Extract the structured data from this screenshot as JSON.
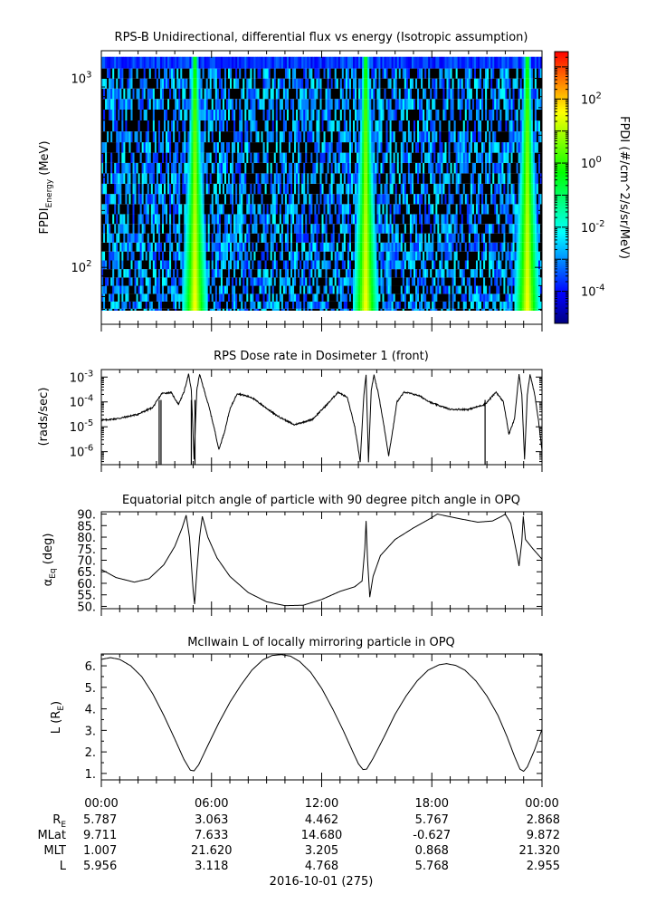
{
  "chart_data": [
    {
      "type": "heatmap",
      "title": "RPS-B  Unidirectional, differential flux vs energy (Isotropic assumption)",
      "ylabel_main": "FPDI",
      "ylabel_sub": "Energy",
      "ylabel_unit": " (MeV)",
      "yscale": "log",
      "ylim": [
        50,
        1400
      ],
      "yticks": [
        {
          "value": 100,
          "base": "10",
          "exp": "2"
        },
        {
          "value": 1000,
          "base": "10",
          "exp": "3"
        }
      ],
      "colorbar_label": "FPDI (#/cm^2/s/sr/MeV)",
      "colorbar_scale": "log",
      "colorbar_range": [
        1e-05,
        3000
      ],
      "colorbar_ticks": [
        {
          "value": 0.0001,
          "base": "10",
          "exp": "-4"
        },
        {
          "value": 0.01,
          "base": "10",
          "exp": "-2"
        },
        {
          "value": 1,
          "base": "10",
          "exp": "0"
        },
        {
          "value": 100,
          "base": "10",
          "exp": "2"
        }
      ],
      "colormap": [
        "#000080",
        "#0000ff",
        "#0080ff",
        "#00ffff",
        "#00ff80",
        "#00ff00",
        "#80ff00",
        "#ffff00",
        "#ff8000",
        "#ff0000"
      ],
      "energy_channels_mev": [
        58,
        63,
        69,
        76,
        84,
        93,
        103,
        115,
        128,
        143,
        160,
        180,
        203,
        230,
        260,
        295,
        335,
        380,
        430,
        490,
        560,
        640,
        730,
        830,
        940,
        1060,
        1200
      ],
      "flux_peaks_hours": [
        5.1,
        14.4,
        23.2
      ]
    },
    {
      "type": "line",
      "title": "RPS  Dose rate in Dosimeter 1 (front)",
      "ylabel": "(rads/sec)",
      "yscale": "log",
      "ylim": [
        3e-07,
        0.002
      ],
      "yticks": [
        {
          "value": 1e-06,
          "base": "10",
          "exp": "-6"
        },
        {
          "value": 1e-05,
          "base": "10",
          "exp": "-5"
        },
        {
          "value": 0.0001,
          "base": "10",
          "exp": "-4"
        },
        {
          "value": 0.001,
          "base": "10",
          "exp": "-3"
        }
      ],
      "series_points_hours_value": [
        [
          0,
          1.8e-05
        ],
        [
          1.0,
          2.2e-05
        ],
        [
          2.0,
          3.2e-05
        ],
        [
          2.8,
          6e-05
        ],
        [
          3.3,
          0.00022
        ],
        [
          3.8,
          0.00024
        ],
        [
          4.2,
          8e-05
        ],
        [
          4.5,
          0.00025
        ],
        [
          4.75,
          0.0013
        ],
        [
          4.9,
          0.0003
        ],
        [
          5.05,
          5e-07
        ],
        [
          5.2,
          0.0003
        ],
        [
          5.35,
          0.0013
        ],
        [
          5.6,
          0.0003
        ],
        [
          5.9,
          5e-05
        ],
        [
          6.2,
          6e-06
        ],
        [
          6.4,
          1.2e-06
        ],
        [
          6.7,
          6e-06
        ],
        [
          7.0,
          5e-05
        ],
        [
          7.4,
          0.00022
        ],
        [
          8.2,
          0.00015
        ],
        [
          9.5,
          3e-05
        ],
        [
          10.5,
          1.2e-05
        ],
        [
          11.5,
          2e-05
        ],
        [
          12.3,
          8e-05
        ],
        [
          12.9,
          0.00025
        ],
        [
          13.4,
          0.00015
        ],
        [
          13.8,
          1e-05
        ],
        [
          14.1,
          4e-07
        ],
        [
          14.3,
          0.0002
        ],
        [
          14.42,
          0.0012
        ],
        [
          14.55,
          4e-07
        ],
        [
          14.7,
          0.0003
        ],
        [
          14.85,
          0.0012
        ],
        [
          15.1,
          0.0002
        ],
        [
          15.4,
          1e-05
        ],
        [
          15.65,
          7e-07
        ],
        [
          15.9,
          1e-05
        ],
        [
          16.1,
          0.0001
        ],
        [
          16.5,
          0.00025
        ],
        [
          17.3,
          0.00018
        ],
        [
          18.0,
          9e-05
        ],
        [
          19.0,
          5e-05
        ],
        [
          20.0,
          5e-05
        ],
        [
          20.9,
          8e-05
        ],
        [
          21.5,
          0.00025
        ],
        [
          21.9,
          0.0001
        ],
        [
          22.2,
          5e-06
        ],
        [
          22.5,
          2e-05
        ],
        [
          22.75,
          0.0013
        ],
        [
          22.9,
          0.0002
        ],
        [
          23.05,
          5e-07
        ],
        [
          23.2,
          0.0002
        ],
        [
          23.35,
          0.0013
        ],
        [
          23.6,
          0.0002
        ],
        [
          23.8,
          2e-05
        ],
        [
          24.0,
          1.1e-06
        ]
      ],
      "dropouts_hours": [
        3.15,
        3.25,
        4.9,
        5.1,
        20.9
      ]
    },
    {
      "type": "line",
      "title": "Equatorial pitch angle of particle with 90 degree pitch angle in OPQ",
      "ylabel_main": "α",
      "ylabel_sub": "Eq",
      "ylabel_unit": " (deg)",
      "ylim": [
        49,
        91
      ],
      "yticks": [
        {
          "value": 50,
          "label": "50."
        },
        {
          "value": 55,
          "label": "55."
        },
        {
          "value": 60,
          "label": "60."
        },
        {
          "value": 65,
          "label": "65."
        },
        {
          "value": 70,
          "label": "70."
        },
        {
          "value": 75,
          "label": "75."
        },
        {
          "value": 80,
          "label": "80."
        },
        {
          "value": 85,
          "label": "85."
        },
        {
          "value": 90,
          "label": "90."
        }
      ],
      "series_points_hours_value": [
        [
          0,
          66
        ],
        [
          0.8,
          62.5
        ],
        [
          1.8,
          60.5
        ],
        [
          2.6,
          62
        ],
        [
          3.4,
          68
        ],
        [
          4.0,
          76
        ],
        [
          4.4,
          84
        ],
        [
          4.62,
          89.5
        ],
        [
          4.8,
          80
        ],
        [
          5.0,
          57
        ],
        [
          5.08,
          51
        ],
        [
          5.2,
          65
        ],
        [
          5.35,
          80
        ],
        [
          5.5,
          89
        ],
        [
          5.8,
          80
        ],
        [
          6.3,
          71
        ],
        [
          7.0,
          63
        ],
        [
          8.0,
          56
        ],
        [
          9.0,
          52
        ],
        [
          10.0,
          50.3
        ],
        [
          11.0,
          50.5
        ],
        [
          12.0,
          53
        ],
        [
          13.0,
          56.5
        ],
        [
          13.8,
          58.5
        ],
        [
          14.2,
          61
        ],
        [
          14.35,
          75
        ],
        [
          14.42,
          87
        ],
        [
          14.5,
          70
        ],
        [
          14.62,
          54
        ],
        [
          14.8,
          63
        ],
        [
          15.2,
          72
        ],
        [
          16.0,
          79
        ],
        [
          17.0,
          84
        ],
        [
          17.9,
          88
        ],
        [
          18.3,
          90
        ],
        [
          19.5,
          88
        ],
        [
          20.5,
          86.5
        ],
        [
          21.3,
          87
        ],
        [
          21.8,
          89
        ],
        [
          22.0,
          90
        ],
        [
          22.3,
          86
        ],
        [
          22.65,
          72
        ],
        [
          22.75,
          67.5
        ],
        [
          22.9,
          78
        ],
        [
          22.98,
          89
        ],
        [
          23.1,
          79
        ],
        [
          23.5,
          75
        ],
        [
          24.0,
          70.5
        ]
      ]
    },
    {
      "type": "line",
      "title": "McIlwain L of locally mirroring particle in OPQ",
      "ylabel_main": "L (R",
      "ylabel_sub": "E",
      "ylabel_unit": ")",
      "ylim": [
        0.7,
        6.55
      ],
      "yticks": [
        {
          "value": 1,
          "label": "1."
        },
        {
          "value": 2,
          "label": "2."
        },
        {
          "value": 3,
          "label": "3."
        },
        {
          "value": 4,
          "label": "4."
        },
        {
          "value": 5,
          "label": "5."
        },
        {
          "value": 6,
          "label": "6."
        }
      ],
      "series_points_hours_value": [
        [
          0,
          6.3
        ],
        [
          0.5,
          6.38
        ],
        [
          1.0,
          6.3
        ],
        [
          1.6,
          6.0
        ],
        [
          2.2,
          5.5
        ],
        [
          2.8,
          4.7
        ],
        [
          3.4,
          3.7
        ],
        [
          4.0,
          2.6
        ],
        [
          4.5,
          1.65
        ],
        [
          4.85,
          1.15
        ],
        [
          5.05,
          1.12
        ],
        [
          5.3,
          1.4
        ],
        [
          5.8,
          2.3
        ],
        [
          6.4,
          3.35
        ],
        [
          7.0,
          4.3
        ],
        [
          7.6,
          5.1
        ],
        [
          8.2,
          5.8
        ],
        [
          8.8,
          6.28
        ],
        [
          9.3,
          6.48
        ],
        [
          9.8,
          6.52
        ],
        [
          10.3,
          6.45
        ],
        [
          10.8,
          6.2
        ],
        [
          11.4,
          5.7
        ],
        [
          12.0,
          4.95
        ],
        [
          12.6,
          4.0
        ],
        [
          13.2,
          2.95
        ],
        [
          13.7,
          2.0
        ],
        [
          14.0,
          1.45
        ],
        [
          14.25,
          1.18
        ],
        [
          14.45,
          1.2
        ],
        [
          14.8,
          1.7
        ],
        [
          15.4,
          2.7
        ],
        [
          16.0,
          3.75
        ],
        [
          16.6,
          4.6
        ],
        [
          17.2,
          5.3
        ],
        [
          17.8,
          5.8
        ],
        [
          18.4,
          6.05
        ],
        [
          18.8,
          6.1
        ],
        [
          19.3,
          6.02
        ],
        [
          19.8,
          5.8
        ],
        [
          20.4,
          5.3
        ],
        [
          21.0,
          4.6
        ],
        [
          21.6,
          3.7
        ],
        [
          22.1,
          2.7
        ],
        [
          22.5,
          1.8
        ],
        [
          22.8,
          1.2
        ],
        [
          23.0,
          1.1
        ],
        [
          23.2,
          1.3
        ],
        [
          23.6,
          2.1
        ],
        [
          24.0,
          3.05
        ]
      ]
    }
  ],
  "time_axis": {
    "xlim_hours": [
      0,
      24
    ],
    "tick_labels": [
      {
        "hours": 0,
        "label": "00:00"
      },
      {
        "hours": 6,
        "label": "06:00"
      },
      {
        "hours": 12,
        "label": "12:00"
      },
      {
        "hours": 18,
        "label": "18:00"
      },
      {
        "hours": 24,
        "label": "00:00"
      }
    ],
    "date_label": "2016-10-01 (275)"
  },
  "ephemeris": {
    "rows": [
      {
        "label_main": "R",
        "label_sub": "E",
        "values": [
          "5.787",
          "3.063",
          "4.462",
          "5.767",
          "2.868"
        ]
      },
      {
        "label_main": "MLat",
        "label_sub": "",
        "values": [
          "9.711",
          "7.633",
          "14.680",
          "-0.627",
          "9.872"
        ]
      },
      {
        "label_main": "MLT",
        "label_sub": "",
        "values": [
          "1.007",
          "21.620",
          "3.205",
          "0.868",
          "21.320"
        ]
      },
      {
        "label_main": "L",
        "label_sub": "",
        "values": [
          "5.956",
          "3.118",
          "4.768",
          "5.768",
          "2.955"
        ]
      }
    ]
  }
}
